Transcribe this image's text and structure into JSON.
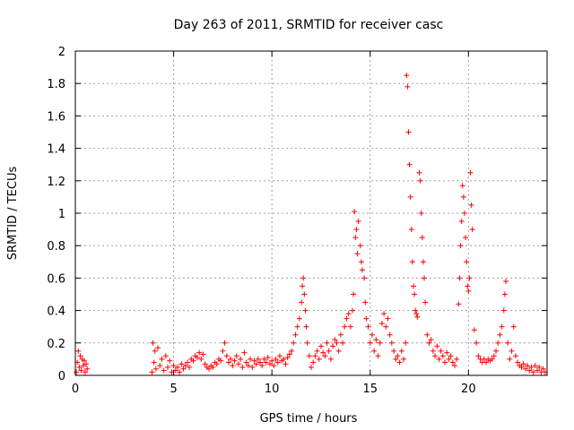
{
  "chart_data": {
    "type": "scatter",
    "title": "Day 263 of 2011, SRMTID for receiver casc",
    "xlabel": "GPS time / hours",
    "ylabel": "SRMTID / TECUs",
    "xlim": [
      0,
      24
    ],
    "ylim": [
      0,
      2
    ],
    "xticks": [
      0,
      5,
      10,
      15,
      20
    ],
    "yticks": [
      0,
      0.2,
      0.4,
      0.6,
      0.8,
      1,
      1.2,
      1.4,
      1.6,
      1.8,
      2
    ],
    "grid": true,
    "marker": "plus",
    "marker_color": "#ff0000",
    "legend": "none",
    "series": [
      {
        "values": [
          [
            0.05,
            0.02
          ],
          [
            0.1,
            0.08
          ],
          [
            0.15,
            0.15
          ],
          [
            0.2,
            0.05
          ],
          [
            0.25,
            0.12
          ],
          [
            0.3,
            0.03
          ],
          [
            0.35,
            0.1
          ],
          [
            0.4,
            0.06
          ],
          [
            0.45,
            0.09
          ],
          [
            0.5,
            0.02
          ],
          [
            0.55,
            0.07
          ],
          [
            0.6,
            0.04
          ],
          [
            3.9,
            0.02
          ],
          [
            3.95,
            0.2
          ],
          [
            4.0,
            0.08
          ],
          [
            4.05,
            0.15
          ],
          [
            4.1,
            0.04
          ],
          [
            4.2,
            0.17
          ],
          [
            4.3,
            0.06
          ],
          [
            4.4,
            0.1
          ],
          [
            4.5,
            0.03
          ],
          [
            4.6,
            0.12
          ],
          [
            4.7,
            0.05
          ],
          [
            4.8,
            0.09
          ],
          [
            4.9,
            0.02
          ],
          [
            5.0,
            0.06
          ],
          [
            5.1,
            0.03
          ],
          [
            5.2,
            0.05
          ],
          [
            5.3,
            0.02
          ],
          [
            5.4,
            0.07
          ],
          [
            5.5,
            0.04
          ],
          [
            5.6,
            0.06
          ],
          [
            5.7,
            0.08
          ],
          [
            5.8,
            0.05
          ],
          [
            5.9,
            0.1
          ],
          [
            6.0,
            0.09
          ],
          [
            6.1,
            0.12
          ],
          [
            6.2,
            0.11
          ],
          [
            6.3,
            0.14
          ],
          [
            6.4,
            0.1
          ],
          [
            6.5,
            0.13
          ],
          [
            6.6,
            0.07
          ],
          [
            6.7,
            0.05
          ],
          [
            6.8,
            0.04
          ],
          [
            6.9,
            0.06
          ],
          [
            7.0,
            0.05
          ],
          [
            7.1,
            0.08
          ],
          [
            7.2,
            0.07
          ],
          [
            7.3,
            0.1
          ],
          [
            7.4,
            0.09
          ],
          [
            7.5,
            0.15
          ],
          [
            7.6,
            0.2
          ],
          [
            7.7,
            0.12
          ],
          [
            7.8,
            0.08
          ],
          [
            7.9,
            0.1
          ],
          [
            8.0,
            0.06
          ],
          [
            8.1,
            0.09
          ],
          [
            8.2,
            0.12
          ],
          [
            8.3,
            0.07
          ],
          [
            8.4,
            0.1
          ],
          [
            8.5,
            0.05
          ],
          [
            8.6,
            0.14
          ],
          [
            8.7,
            0.08
          ],
          [
            8.8,
            0.06
          ],
          [
            8.9,
            0.1
          ],
          [
            9.0,
            0.05
          ],
          [
            9.1,
            0.09
          ],
          [
            9.2,
            0.07
          ],
          [
            9.3,
            0.1
          ],
          [
            9.4,
            0.08
          ],
          [
            9.5,
            0.06
          ],
          [
            9.6,
            0.1
          ],
          [
            9.7,
            0.08
          ],
          [
            9.8,
            0.11
          ],
          [
            9.9,
            0.07
          ],
          [
            10.0,
            0.09
          ],
          [
            10.1,
            0.06
          ],
          [
            10.2,
            0.1
          ],
          [
            10.3,
            0.08
          ],
          [
            10.4,
            0.12
          ],
          [
            10.5,
            0.09
          ],
          [
            10.6,
            0.1
          ],
          [
            10.7,
            0.07
          ],
          [
            10.8,
            0.11
          ],
          [
            10.9,
            0.13
          ],
          [
            11.0,
            0.15
          ],
          [
            11.1,
            0.2
          ],
          [
            11.2,
            0.25
          ],
          [
            11.3,
            0.3
          ],
          [
            11.4,
            0.35
          ],
          [
            11.5,
            0.45
          ],
          [
            11.55,
            0.55
          ],
          [
            11.6,
            0.6
          ],
          [
            11.65,
            0.5
          ],
          [
            11.7,
            0.4
          ],
          [
            11.75,
            0.3
          ],
          [
            11.8,
            0.2
          ],
          [
            11.9,
            0.12
          ],
          [
            12.0,
            0.05
          ],
          [
            12.1,
            0.08
          ],
          [
            12.2,
            0.12
          ],
          [
            12.3,
            0.15
          ],
          [
            12.4,
            0.1
          ],
          [
            12.5,
            0.18
          ],
          [
            12.6,
            0.14
          ],
          [
            12.7,
            0.12
          ],
          [
            12.8,
            0.2
          ],
          [
            12.9,
            0.15
          ],
          [
            13.0,
            0.1
          ],
          [
            13.1,
            0.18
          ],
          [
            13.2,
            0.22
          ],
          [
            13.3,
            0.2
          ],
          [
            13.4,
            0.15
          ],
          [
            13.5,
            0.25
          ],
          [
            13.6,
            0.2
          ],
          [
            13.7,
            0.3
          ],
          [
            13.8,
            0.35
          ],
          [
            13.9,
            0.38
          ],
          [
            14.0,
            0.3
          ],
          [
            14.1,
            0.4
          ],
          [
            14.15,
            0.5
          ],
          [
            14.2,
            1.01
          ],
          [
            14.25,
            0.85
          ],
          [
            14.3,
            0.9
          ],
          [
            14.35,
            0.75
          ],
          [
            14.4,
            0.95
          ],
          [
            14.5,
            0.8
          ],
          [
            14.55,
            0.7
          ],
          [
            14.6,
            0.65
          ],
          [
            14.7,
            0.6
          ],
          [
            14.75,
            0.45
          ],
          [
            14.8,
            0.35
          ],
          [
            14.9,
            0.3
          ],
          [
            15.0,
            0.2
          ],
          [
            15.1,
            0.25
          ],
          [
            15.2,
            0.15
          ],
          [
            15.3,
            0.22
          ],
          [
            15.4,
            0.12
          ],
          [
            15.5,
            0.2
          ],
          [
            15.6,
            0.32
          ],
          [
            15.7,
            0.38
          ],
          [
            15.8,
            0.3
          ],
          [
            15.9,
            0.35
          ],
          [
            16.0,
            0.25
          ],
          [
            16.1,
            0.2
          ],
          [
            16.2,
            0.15
          ],
          [
            16.3,
            0.1
          ],
          [
            16.4,
            0.12
          ],
          [
            16.5,
            0.08
          ],
          [
            16.6,
            0.15
          ],
          [
            16.7,
            0.1
          ],
          [
            16.8,
            0.2
          ],
          [
            16.85,
            1.85
          ],
          [
            16.9,
            1.78
          ],
          [
            16.95,
            1.5
          ],
          [
            17.0,
            1.3
          ],
          [
            17.05,
            1.1
          ],
          [
            17.1,
            0.9
          ],
          [
            17.15,
            0.7
          ],
          [
            17.2,
            0.55
          ],
          [
            17.25,
            0.5
          ],
          [
            17.3,
            0.4
          ],
          [
            17.35,
            0.38
          ],
          [
            17.4,
            0.36
          ],
          [
            17.5,
            1.25
          ],
          [
            17.55,
            1.2
          ],
          [
            17.6,
            1.0
          ],
          [
            17.65,
            0.85
          ],
          [
            17.7,
            0.7
          ],
          [
            17.75,
            0.6
          ],
          [
            17.8,
            0.45
          ],
          [
            17.9,
            0.25
          ],
          [
            18.0,
            0.2
          ],
          [
            18.1,
            0.22
          ],
          [
            18.2,
            0.15
          ],
          [
            18.3,
            0.12
          ],
          [
            18.4,
            0.18
          ],
          [
            18.5,
            0.1
          ],
          [
            18.6,
            0.15
          ],
          [
            18.7,
            0.12
          ],
          [
            18.8,
            0.08
          ],
          [
            18.9,
            0.14
          ],
          [
            19.0,
            0.1
          ],
          [
            19.1,
            0.12
          ],
          [
            19.2,
            0.08
          ],
          [
            19.3,
            0.06
          ],
          [
            19.4,
            0.1
          ],
          [
            19.5,
            0.44
          ],
          [
            19.55,
            0.6
          ],
          [
            19.6,
            0.8
          ],
          [
            19.65,
            0.95
          ],
          [
            19.7,
            1.17
          ],
          [
            19.75,
            1.1
          ],
          [
            19.8,
            1.0
          ],
          [
            19.85,
            0.85
          ],
          [
            19.9,
            0.7
          ],
          [
            19.95,
            0.55
          ],
          [
            20.0,
            0.52
          ],
          [
            20.05,
            0.6
          ],
          [
            20.1,
            1.25
          ],
          [
            20.15,
            1.05
          ],
          [
            20.2,
            0.9
          ],
          [
            20.3,
            0.28
          ],
          [
            20.4,
            0.2
          ],
          [
            20.5,
            0.12
          ],
          [
            20.6,
            0.1
          ],
          [
            20.7,
            0.08
          ],
          [
            20.8,
            0.1
          ],
          [
            20.9,
            0.08
          ],
          [
            21.0,
            0.1
          ],
          [
            21.1,
            0.09
          ],
          [
            21.2,
            0.1
          ],
          [
            21.3,
            0.12
          ],
          [
            21.4,
            0.15
          ],
          [
            21.5,
            0.2
          ],
          [
            21.6,
            0.25
          ],
          [
            21.7,
            0.3
          ],
          [
            21.8,
            0.4
          ],
          [
            21.85,
            0.5
          ],
          [
            21.9,
            0.58
          ],
          [
            22.0,
            0.2
          ],
          [
            22.1,
            0.1
          ],
          [
            22.2,
            0.15
          ],
          [
            22.3,
            0.3
          ],
          [
            22.4,
            0.12
          ],
          [
            22.5,
            0.08
          ],
          [
            22.6,
            0.06
          ],
          [
            22.7,
            0.05
          ],
          [
            22.8,
            0.07
          ],
          [
            22.9,
            0.04
          ],
          [
            23.0,
            0.06
          ],
          [
            23.1,
            0.03
          ],
          [
            23.2,
            0.05
          ],
          [
            23.3,
            0.02
          ],
          [
            23.4,
            0.06
          ],
          [
            23.5,
            0.03
          ],
          [
            23.6,
            0.05
          ],
          [
            23.7,
            0.02
          ],
          [
            23.8,
            0.04
          ],
          [
            23.9,
            0.02
          ]
        ]
      }
    ]
  }
}
